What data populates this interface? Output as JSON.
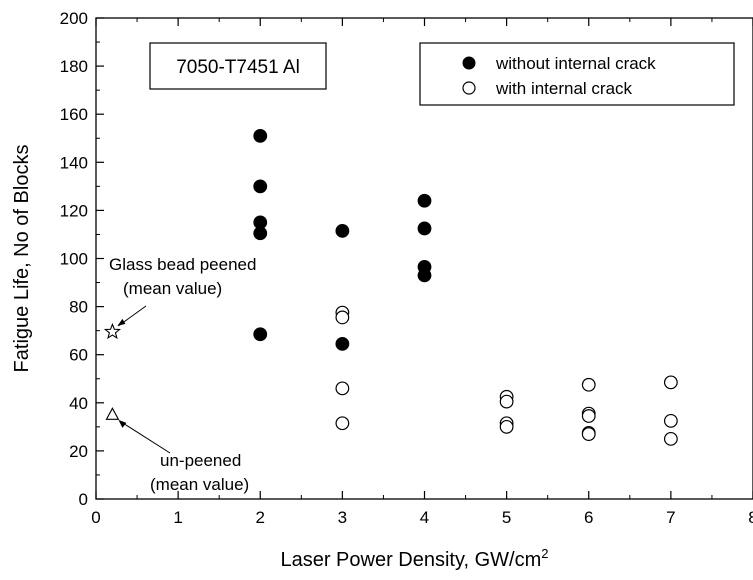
{
  "chart_data": {
    "type": "scatter",
    "xlabel": "Laser Power Density, GW/cm",
    "xlabel_superscript": "2",
    "ylabel": "Fatigue Life, No of Blocks",
    "xlim": [
      0,
      8
    ],
    "ylim": [
      0,
      200
    ],
    "x_ticks": [
      "0",
      "1",
      "2",
      "3",
      "4",
      "5",
      "6",
      "7",
      "8"
    ],
    "y_ticks": [
      "0",
      "20",
      "40",
      "60",
      "80",
      "100",
      "120",
      "140",
      "160",
      "180",
      "200"
    ],
    "grid": false,
    "legend_position": "top-right",
    "material_label": "7050-T7451 Al",
    "series": [
      {
        "name": "without internal crack",
        "marker": "filled-circle",
        "points": [
          {
            "x": 2,
            "y": 151
          },
          {
            "x": 2,
            "y": 130
          },
          {
            "x": 2,
            "y": 115
          },
          {
            "x": 2,
            "y": 110.5
          },
          {
            "x": 2,
            "y": 68.5
          },
          {
            "x": 3,
            "y": 111.5
          },
          {
            "x": 3,
            "y": 64.5
          },
          {
            "x": 4,
            "y": 124
          },
          {
            "x": 4,
            "y": 112.5
          },
          {
            "x": 4,
            "y": 96.5
          },
          {
            "x": 4,
            "y": 93
          }
        ]
      },
      {
        "name": "with internal crack",
        "marker": "open-circle",
        "points": [
          {
            "x": 3,
            "y": 77.5
          },
          {
            "x": 3,
            "y": 75.5
          },
          {
            "x": 3,
            "y": 46
          },
          {
            "x": 3,
            "y": 31.5
          },
          {
            "x": 5,
            "y": 42.5
          },
          {
            "x": 5,
            "y": 40.5
          },
          {
            "x": 5,
            "y": 31.5
          },
          {
            "x": 5,
            "y": 30
          },
          {
            "x": 6,
            "y": 47.5
          },
          {
            "x": 6,
            "y": 35.5
          },
          {
            "x": 6,
            "y": 34.5
          },
          {
            "x": 6,
            "y": 27.5
          },
          {
            "x": 6,
            "y": 27
          },
          {
            "x": 7,
            "y": 48.5
          },
          {
            "x": 7,
            "y": 32.5
          },
          {
            "x": 7,
            "y": 25
          }
        ]
      }
    ],
    "reference_points": [
      {
        "marker": "star",
        "x": 0.2,
        "y": 69.5,
        "label_lines": [
          "Glass bead peened",
          "(mean value)"
        ]
      },
      {
        "marker": "triangle",
        "x": 0.2,
        "y": 35,
        "label_lines": [
          "un-peened",
          "(mean value)"
        ]
      }
    ]
  }
}
